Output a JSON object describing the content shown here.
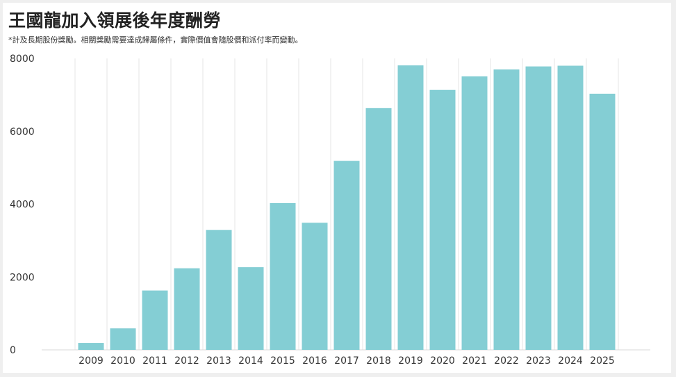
{
  "page": {
    "title": "王國龍加入領展後年度酬勞",
    "subtitle": "*計及長期股份獎勵。相關獎勵需要達成歸屬條件，實際價值會隨股價和派付率而變動。"
  },
  "chart_data": {
    "type": "bar",
    "title": "王國龍加入領展後年度酬勞",
    "subtitle": "*計及長期股份獎勵。相關獎勵需要達成歸屬條件，實際價值會隨股價和派付率而變動。",
    "categories": [
      "2009",
      "2010",
      "2011",
      "2012",
      "2013",
      "2014",
      "2015",
      "2016",
      "2017",
      "2018",
      "2019",
      "2020",
      "2021",
      "2022",
      "2023",
      "2024",
      "2025"
    ],
    "values": [
      190,
      590,
      1630,
      2240,
      3290,
      2270,
      4030,
      3490,
      5190,
      6640,
      7810,
      7140,
      7510,
      7700,
      7780,
      7800,
      7030
    ],
    "xlabel": "",
    "ylabel": "",
    "ylim": [
      0,
      8000
    ],
    "yticks": [
      "0",
      "2000",
      "4000",
      "6000",
      "8000"
    ],
    "grid": "vertical",
    "bar_color": "#84ced4",
    "grid_color": "#e6e6e6"
  }
}
